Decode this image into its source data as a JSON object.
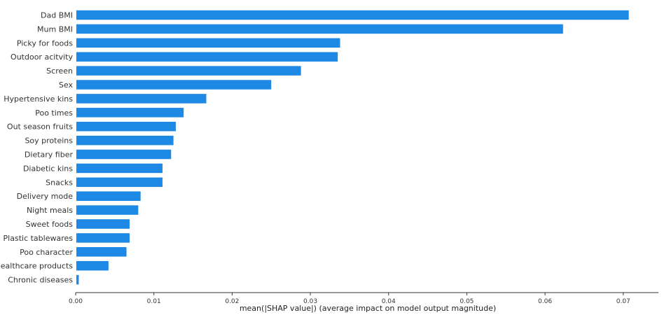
{
  "chart_data": {
    "type": "bar",
    "orientation": "horizontal",
    "title": "",
    "xlabel": "mean(|SHAP value|) (average impact on model output magnitude)",
    "ylabel": "",
    "xlim": [
      0,
      0.0745
    ],
    "xticks": [
      0.0,
      0.01,
      0.02,
      0.03,
      0.04,
      0.05,
      0.06,
      0.07
    ],
    "xtick_labels": [
      "0.00",
      "0.01",
      "0.02",
      "0.03",
      "0.04",
      "0.05",
      "0.06",
      "0.07"
    ],
    "grid": false,
    "bar_color": "#1e88e5",
    "categories": [
      "Dad BMI",
      "Mum BMI",
      "Picky for foods",
      "Outdoor acitvity",
      "Screen",
      "Sex",
      "Hypertensive kins",
      "Poo times",
      "Out season fruits",
      "Soy proteins",
      "Dietary fiber",
      "Diabetic kins",
      "Snacks",
      "Delivery mode",
      "Night meals",
      "Sweet foods",
      "Plastic tablewares",
      "Poo character",
      "Healthcare products",
      "Chronic diseases"
    ],
    "values": [
      0.0707,
      0.0623,
      0.0338,
      0.0335,
      0.0288,
      0.025,
      0.0167,
      0.0138,
      0.0128,
      0.0125,
      0.0122,
      0.0111,
      0.0111,
      0.0083,
      0.008,
      0.0069,
      0.0069,
      0.0065,
      0.0042,
      0.0004
    ]
  }
}
